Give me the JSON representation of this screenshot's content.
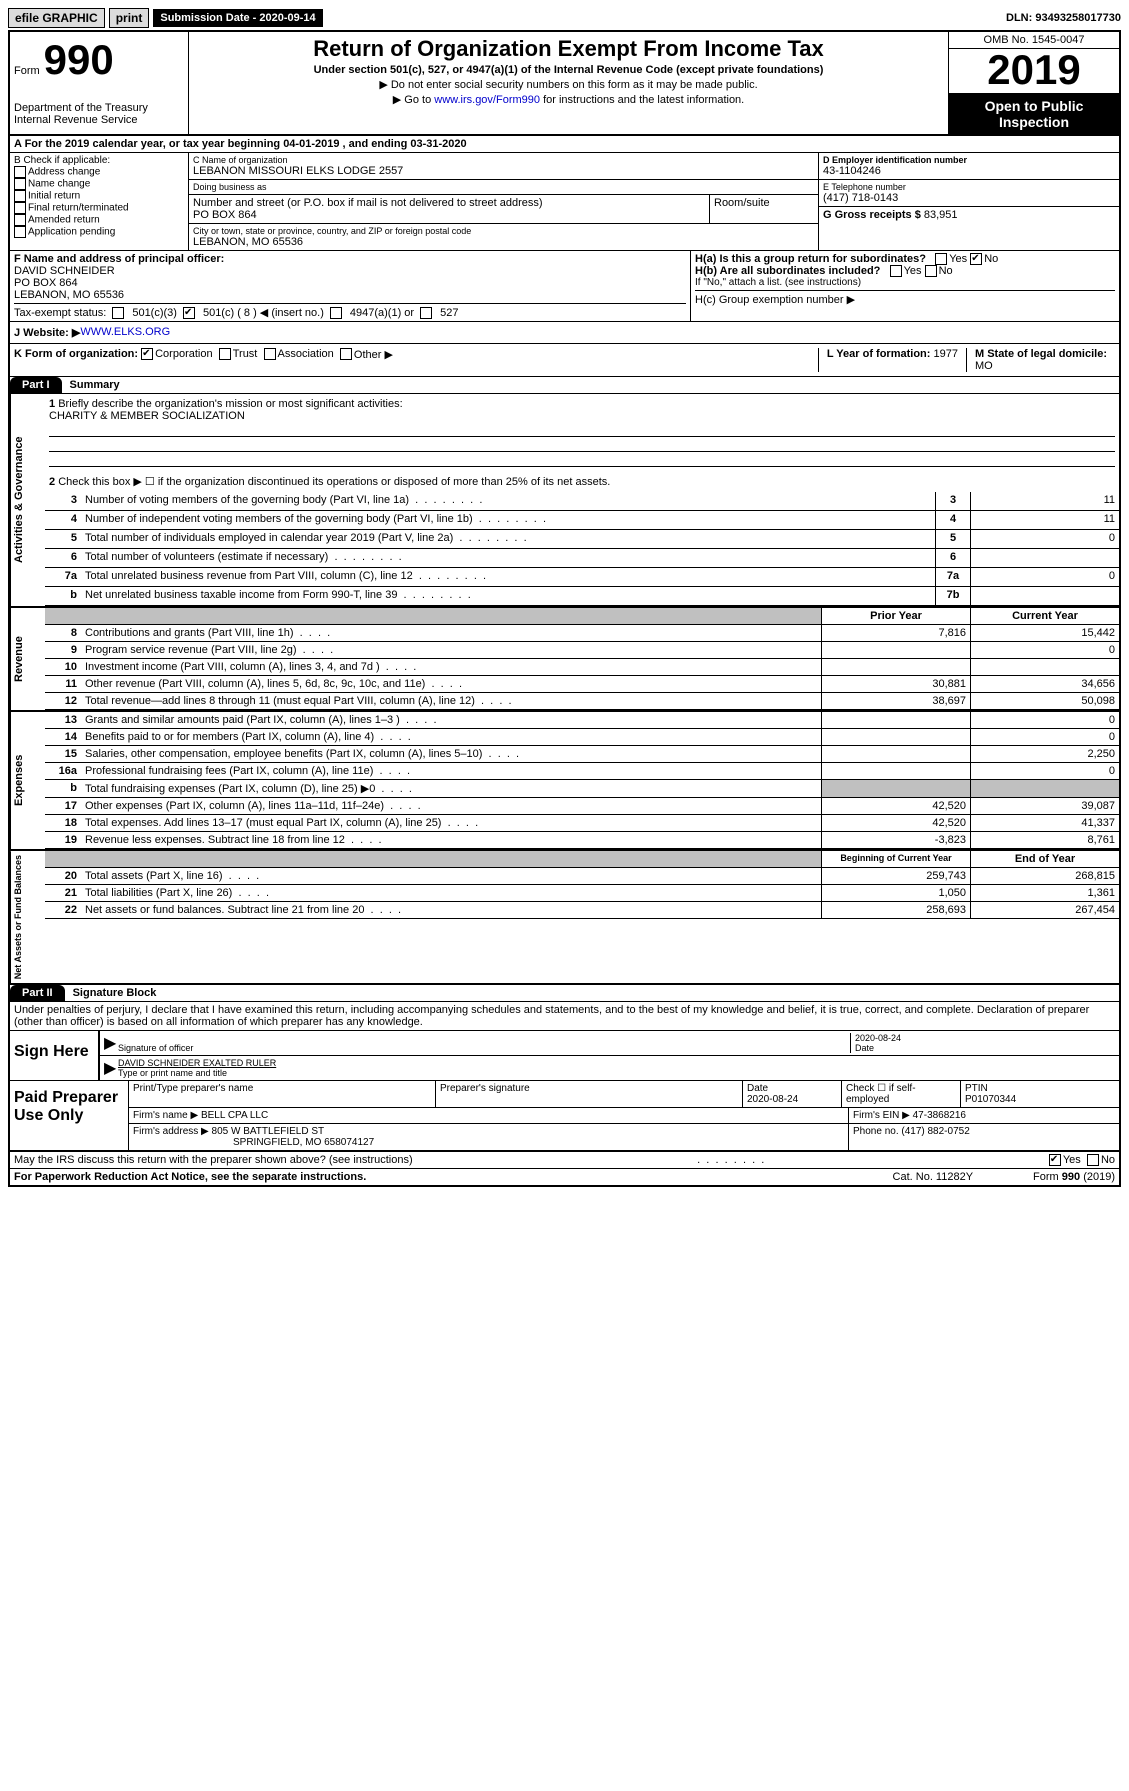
{
  "topbar": {
    "efile": "efile GRAPHIC",
    "print": "print",
    "sub_label": "Submission Date - ",
    "sub_date": "2020-09-14",
    "dln_label": "DLN: ",
    "dln": "93493258017730"
  },
  "header": {
    "form_word": "Form",
    "form_num": "990",
    "dept": "Department of the Treasury\nInternal Revenue Service",
    "title": "Return of Organization Exempt From Income Tax",
    "subtitle": "Under section 501(c), 527, or 4947(a)(1) of the Internal Revenue Code (except private foundations)",
    "arrow1": "▶ Do not enter social security numbers on this form as it may be made public.",
    "arrow2_pre": "▶ Go to ",
    "arrow2_link": "www.irs.gov/Form990",
    "arrow2_post": " for instructions and the latest information.",
    "omb": "OMB No. 1545-0047",
    "year": "2019",
    "open": "Open to Public Inspection"
  },
  "row_a": "A For the 2019 calendar year, or tax year beginning 04-01-2019   , and ending 03-31-2020",
  "col_b": {
    "title": "B Check if applicable:",
    "items": [
      "Address change",
      "Name change",
      "Initial return",
      "Final return/terminated",
      "Amended return",
      "Application pending"
    ]
  },
  "col_c": {
    "name_lbl": "C Name of organization",
    "name": "LEBANON MISSOURI ELKS LODGE 2557",
    "dba_lbl": "Doing business as",
    "dba": "",
    "addr_lbl": "Number and street (or P.O. box if mail is not delivered to street address)",
    "room_lbl": "Room/suite",
    "addr": "PO BOX 864",
    "city_lbl": "City or town, state or province, country, and ZIP or foreign postal code",
    "city": "LEBANON, MO  65536"
  },
  "col_d": {
    "ein_lbl": "D Employer identification number",
    "ein": "43-1104246",
    "phone_lbl": "E Telephone number",
    "phone": "(417) 718-0143",
    "gross_lbl": "G Gross receipts $ ",
    "gross": "83,951"
  },
  "row_f": {
    "lbl": "F  Name and address of principal officer:",
    "name": "DAVID SCHNEIDER",
    "addr1": "PO BOX 864",
    "addr2": "LEBANON, MO  65536",
    "ha": "H(a)  Is this a group return for subordinates?",
    "hb": "H(b)  Are all subordinates included?",
    "hb_note": "If \"No,\" attach a list. (see instructions)",
    "hc": "H(c)  Group exemption number ▶",
    "yes": "Yes",
    "no": "No"
  },
  "status": {
    "lbl": "Tax-exempt status:",
    "o1": "501(c)(3)",
    "o2": "501(c) ( 8 ) ◀ (insert no.)",
    "o3": "4947(a)(1) or",
    "o4": "527"
  },
  "website": {
    "lbl": "J  Website: ▶  ",
    "url": "WWW.ELKS.ORG"
  },
  "kform": {
    "lbl": "K Form of organization:",
    "opts": [
      "Corporation",
      "Trust",
      "Association",
      "Other ▶"
    ],
    "l_lbl": "L Year of formation: ",
    "l_val": "1977",
    "m_lbl": "M State of legal domicile:",
    "m_val": "MO"
  },
  "part1": {
    "tab": "Part I",
    "title": "Summary"
  },
  "section1": {
    "label": "Activities & Governance",
    "l1": "Briefly describe the organization's mission or most significant activities:",
    "l1_val": "CHARITY & MEMBER SOCIALIZATION",
    "l2": "Check this box ▶ ☐  if the organization discontinued its operations or disposed of more than 25% of its net assets.",
    "lines": [
      {
        "n": "3",
        "d": "Number of voting members of the governing body (Part VI, line 1a)",
        "c": "3",
        "v": "11"
      },
      {
        "n": "4",
        "d": "Number of independent voting members of the governing body (Part VI, line 1b)",
        "c": "4",
        "v": "11"
      },
      {
        "n": "5",
        "d": "Total number of individuals employed in calendar year 2019 (Part V, line 2a)",
        "c": "5",
        "v": "0"
      },
      {
        "n": "6",
        "d": "Total number of volunteers (estimate if necessary)",
        "c": "6",
        "v": ""
      },
      {
        "n": "7a",
        "d": "Total unrelated business revenue from Part VIII, column (C), line 12",
        "c": "7a",
        "v": "0"
      },
      {
        "n": "b",
        "d": "Net unrelated business taxable income from Form 990-T, line 39",
        "c": "7b",
        "v": ""
      }
    ]
  },
  "section2": {
    "label": "Revenue",
    "head1": "Prior Year",
    "head2": "Current Year",
    "lines": [
      {
        "n": "8",
        "d": "Contributions and grants (Part VIII, line 1h)",
        "p": "7,816",
        "c": "15,442"
      },
      {
        "n": "9",
        "d": "Program service revenue (Part VIII, line 2g)",
        "p": "",
        "c": "0"
      },
      {
        "n": "10",
        "d": "Investment income (Part VIII, column (A), lines 3, 4, and 7d )",
        "p": "",
        "c": ""
      },
      {
        "n": "11",
        "d": "Other revenue (Part VIII, column (A), lines 5, 6d, 8c, 9c, 10c, and 11e)",
        "p": "30,881",
        "c": "34,656"
      },
      {
        "n": "12",
        "d": "Total revenue—add lines 8 through 11 (must equal Part VIII, column (A), line 12)",
        "p": "38,697",
        "c": "50,098"
      }
    ]
  },
  "section3": {
    "label": "Expenses",
    "lines": [
      {
        "n": "13",
        "d": "Grants and similar amounts paid (Part IX, column (A), lines 1–3 )",
        "p": "",
        "c": "0"
      },
      {
        "n": "14",
        "d": "Benefits paid to or for members (Part IX, column (A), line 4)",
        "p": "",
        "c": "0"
      },
      {
        "n": "15",
        "d": "Salaries, other compensation, employee benefits (Part IX, column (A), lines 5–10)",
        "p": "",
        "c": "2,250"
      },
      {
        "n": "16a",
        "d": "Professional fundraising fees (Part IX, column (A), line 11e)",
        "p": "",
        "c": "0"
      },
      {
        "n": "b",
        "d": "Total fundraising expenses (Part IX, column (D), line 25) ▶0",
        "p": "gray",
        "c": "gray"
      },
      {
        "n": "17",
        "d": "Other expenses (Part IX, column (A), lines 11a–11d, 11f–24e)",
        "p": "42,520",
        "c": "39,087"
      },
      {
        "n": "18",
        "d": "Total expenses. Add lines 13–17 (must equal Part IX, column (A), line 25)",
        "p": "42,520",
        "c": "41,337"
      },
      {
        "n": "19",
        "d": "Revenue less expenses. Subtract line 18 from line 12",
        "p": "-3,823",
        "c": "8,761"
      }
    ]
  },
  "section4": {
    "label": "Net Assets or Fund Balances",
    "head1": "Beginning of Current Year",
    "head2": "End of Year",
    "lines": [
      {
        "n": "20",
        "d": "Total assets (Part X, line 16)",
        "p": "259,743",
        "c": "268,815"
      },
      {
        "n": "21",
        "d": "Total liabilities (Part X, line 26)",
        "p": "1,050",
        "c": "1,361"
      },
      {
        "n": "22",
        "d": "Net assets or fund balances. Subtract line 21 from line 20",
        "p": "258,693",
        "c": "267,454"
      }
    ]
  },
  "part2": {
    "tab": "Part II",
    "title": "Signature Block"
  },
  "perjury": "Under penalties of perjury, I declare that I have examined this return, including accompanying schedules and statements, and to the best of my knowledge and belief, it is true, correct, and complete. Declaration of preparer (other than officer) is based on all information of which preparer has any knowledge.",
  "sign": {
    "left": "Sign Here",
    "sig_lbl": "Signature of officer",
    "date": "2020-08-24",
    "date_lbl": "Date",
    "name": "DAVID SCHNEIDER  EXALTED RULER",
    "name_lbl": "Type or print name and title"
  },
  "paid": {
    "left": "Paid Preparer Use Only",
    "h1": "Print/Type preparer's name",
    "h2": "Preparer's signature",
    "h3": "Date",
    "h3v": "2020-08-24",
    "h4": "Check ☐ if self-employed",
    "h5": "PTIN",
    "h5v": "P01070344",
    "firm_lbl": "Firm's name    ▶ ",
    "firm": "BELL CPA LLC",
    "ein_lbl": "Firm's EIN ▶ ",
    "ein": "47-3868216",
    "addr_lbl": "Firm's address ▶ ",
    "addr1": "805 W BATTLEFIELD ST",
    "addr2": "SPRINGFIELD, MO  658074127",
    "phone_lbl": "Phone no. ",
    "phone": "(417) 882-0752"
  },
  "discuss": {
    "text": "May the IRS discuss this return with the preparer shown above? (see instructions)",
    "yes": "Yes",
    "no": "No"
  },
  "footer": {
    "left": "For Paperwork Reduction Act Notice, see the separate instructions.",
    "mid": "Cat. No. 11282Y",
    "right": "Form 990 (2019)"
  }
}
